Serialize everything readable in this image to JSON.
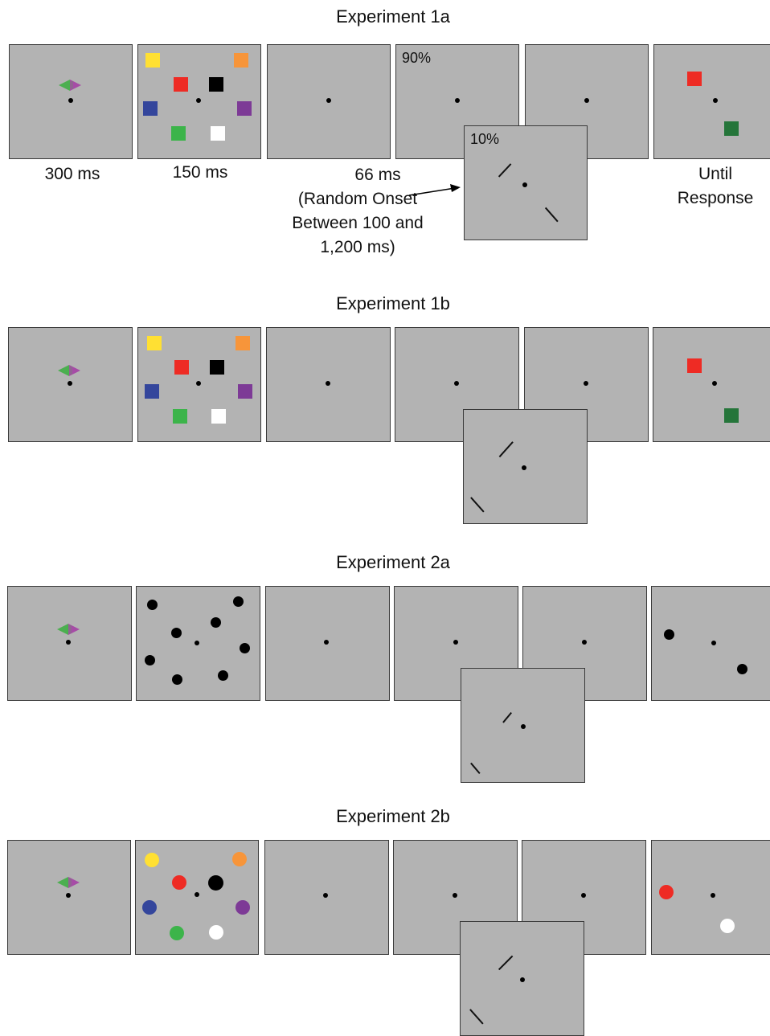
{
  "experiments": [
    {
      "title": "Experiment 1a"
    },
    {
      "title": "Experiment 1b"
    },
    {
      "title": "Experiment 2a"
    },
    {
      "title": "Experiment 2b"
    }
  ],
  "probability_labels": {
    "common": "90%",
    "rare": "10%"
  },
  "timing_labels": {
    "cue": "300 ms",
    "memory_array": "150 ms",
    "probe": "66 ms",
    "probe_onset_1": "(Random Onset",
    "probe_onset_2": "Between 100 and",
    "probe_onset_3": "1,200 ms)",
    "response_1": "Until",
    "response_2": "Response"
  },
  "colors": {
    "panel_bg": "#b3b3b3",
    "cue_left": "#4caf50",
    "cue_right": "#a64ca6",
    "yellow": "#ffe033",
    "orange": "#f7953a",
    "red": "#ee2b24",
    "black": "#000000",
    "blue": "#34469c",
    "purple": "#7d3a96",
    "green": "#3cb44a",
    "white": "#ffffff",
    "dark_green": "#25753a"
  }
}
